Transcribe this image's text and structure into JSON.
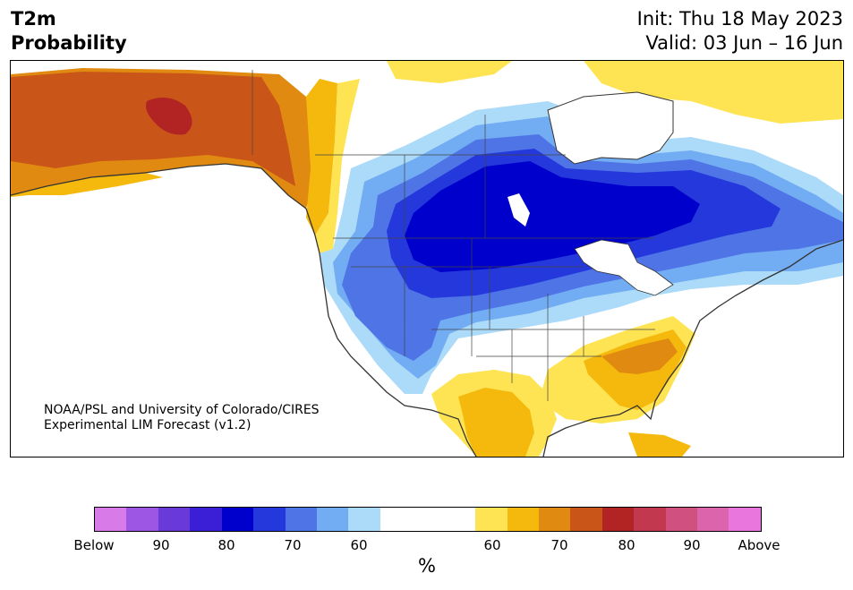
{
  "title": {
    "line1": "T2m",
    "line2": "Probability"
  },
  "dates": {
    "init": "Init: Thu 18 May 2023",
    "valid": "Valid: 03 Jun – 16 Jun"
  },
  "credit": {
    "line1": "NOAA/PSL and University of Colorado/CIRES",
    "line2": "Experimental LIM Forecast (v1.2)"
  },
  "colorbar": {
    "colors": [
      "#d87ae8",
      "#9d55e3",
      "#6a39d9",
      "#3a1fd6",
      "#0000cc",
      "#2438dc",
      "#4e74e6",
      "#72acf2",
      "#acdaf9",
      "#ffffff",
      "#fee352",
      "#f4b90c",
      "#e08a11",
      "#c95618",
      "#b22323",
      "#c2384f",
      "#d05080",
      "#dc64ac",
      "#e876dc"
    ],
    "labels": [
      "Below",
      "90",
      "80",
      "70",
      "60",
      "60",
      "70",
      "80",
      "90",
      "Above"
    ],
    "unit": "%"
  },
  "map": {
    "colors": {
      "below_60": "#acdaf9",
      "below_70": "#72acf2",
      "below_80": "#4e74e6",
      "below_90": "#2438dc",
      "below_max": "#0000cc",
      "above_60": "#fee352",
      "above_70": "#f4b90c",
      "above_80": "#e08a11",
      "above_90": "#c95618",
      "above_max": "#b22323",
      "land_outline": "#333333"
    }
  }
}
